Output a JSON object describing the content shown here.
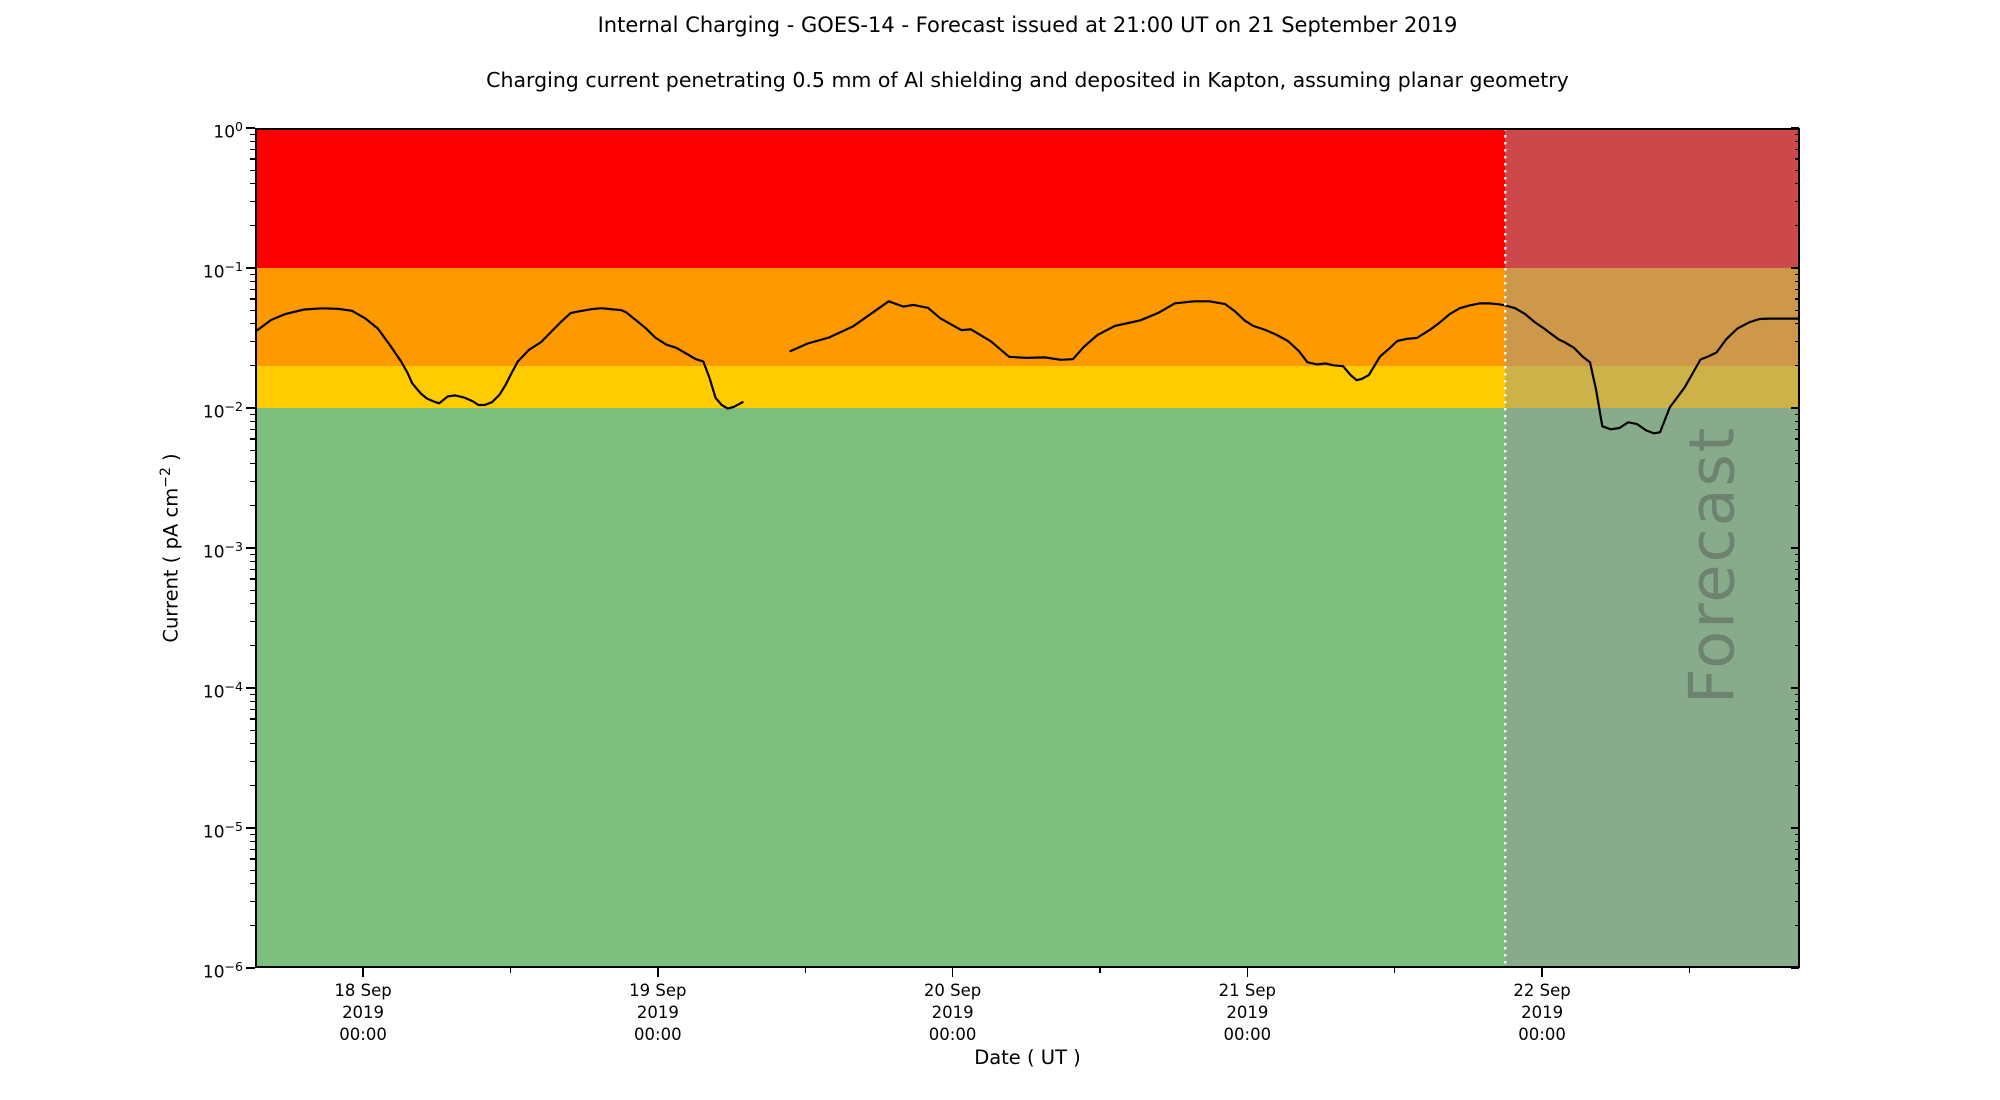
{
  "figure": {
    "title": "Internal Charging - GOES-14 - Forecast issued at 21:00 UT on 21 September 2019",
    "subtitle": "Charging current penetrating 0.5 mm of Al shielding and deposited in Kapton, assuming planar geometry",
    "watermark": "Forecast"
  },
  "axes": {
    "x_label": "Date ( UT )",
    "y_label_prefix": "Current ( pA cm",
    "y_label_sup": "−2",
    "y_label_suffix": " )",
    "x_ticks": [
      {
        "hours": 0,
        "line1": "18 Sep",
        "line2": "2019",
        "line3": "00:00"
      },
      {
        "hours": 24,
        "line1": "19 Sep",
        "line2": "2019",
        "line3": "00:00"
      },
      {
        "hours": 48,
        "line1": "20 Sep",
        "line2": "2019",
        "line3": "00:00"
      },
      {
        "hours": 72,
        "line1": "21 Sep",
        "line2": "2019",
        "line3": "00:00"
      },
      {
        "hours": 96,
        "line1": "22 Sep",
        "line2": "2019",
        "line3": "00:00"
      }
    ],
    "x_minor_tick_hours": [
      12,
      36,
      60,
      84,
      108
    ],
    "y_ticks": [
      {
        "log": 0,
        "exp": "0"
      },
      {
        "log": -1,
        "exp": "−1"
      },
      {
        "log": -2,
        "exp": "−2"
      },
      {
        "log": -3,
        "exp": "−3"
      },
      {
        "log": -4,
        "exp": "−4"
      },
      {
        "log": -5,
        "exp": "−5"
      },
      {
        "log": -6,
        "exp": "−6"
      }
    ]
  },
  "chart_data": {
    "type": "line",
    "title": "Internal Charging - GOES-14 - Forecast issued at 21:00 UT on 21 September 2019",
    "xlabel": "Date ( UT )",
    "ylabel": "Current ( pA cm^-2 )",
    "x_unit": "hours since 18 Sep 2019 00:00 UT",
    "x_range_hours": [
      -8.8,
      117
    ],
    "y_scale": "log",
    "y_range": [
      1e-06,
      1
    ],
    "grid": false,
    "legend": "none",
    "bands": [
      {
        "name": "red-alert",
        "from": 0.1,
        "to": 1.0,
        "color": "#ff0000"
      },
      {
        "name": "orange-alert",
        "from": 0.02,
        "to": 0.1,
        "color": "#ff9900"
      },
      {
        "name": "yellow-alert",
        "from": 0.01,
        "to": 0.02,
        "color": "#ffcc00"
      },
      {
        "name": "green-quiet",
        "from": 1e-06,
        "to": 0.01,
        "color": "#7cbf7d"
      }
    ],
    "forecast_start_hours": 93,
    "forecast_start_label": "21 Sep 2019 21:00 UT",
    "forecast_divider_color": "#ffffff",
    "series": [
      {
        "name": "charging-current",
        "color": "#000000",
        "segments": [
          [
            [
              -8.6,
              0.036
            ],
            [
              -7.5,
              0.0425
            ],
            [
              -6.3,
              0.047
            ],
            [
              -4.8,
              0.0505
            ],
            [
              -3.3,
              0.0515
            ],
            [
              -2,
              0.051
            ],
            [
              -0.9,
              0.0495
            ],
            [
              0.2,
              0.0435
            ],
            [
              1.2,
              0.037
            ],
            [
              2.2,
              0.028
            ],
            [
              3.1,
              0.0215
            ],
            [
              3.6,
              0.018
            ],
            [
              4,
              0.015
            ],
            [
              4.7,
              0.0127
            ],
            [
              5.2,
              0.0117
            ],
            [
              5.8,
              0.0111
            ],
            [
              6.2,
              0.0108
            ],
            [
              6.9,
              0.0121
            ],
            [
              7.5,
              0.0123
            ],
            [
              8.2,
              0.0119
            ],
            [
              8.9,
              0.0112
            ],
            [
              9.4,
              0.0105
            ],
            [
              9.9,
              0.0105
            ],
            [
              10.5,
              0.011
            ],
            [
              11.1,
              0.0124
            ],
            [
              11.6,
              0.0146
            ],
            [
              12.1,
              0.0178
            ],
            [
              12.6,
              0.0215
            ],
            [
              13.5,
              0.026
            ],
            [
              14.5,
              0.0296
            ],
            [
              15.3,
              0.0349
            ],
            [
              16.1,
              0.0411
            ],
            [
              16.9,
              0.0476
            ],
            [
              17.7,
              0.0492
            ],
            [
              18.6,
              0.0508
            ],
            [
              19.4,
              0.0516
            ],
            [
              20.2,
              0.0508
            ],
            [
              21,
              0.05
            ],
            [
              21.4,
              0.0484
            ],
            [
              22.2,
              0.0425
            ],
            [
              23,
              0.0373
            ],
            [
              23.8,
              0.0318
            ],
            [
              24.7,
              0.0283
            ],
            [
              25.5,
              0.0269
            ],
            [
              26.3,
              0.0245
            ],
            [
              27.1,
              0.0223
            ],
            [
              27.7,
              0.0215
            ],
            [
              28.2,
              0.0165
            ],
            [
              28.7,
              0.0118
            ],
            [
              29.2,
              0.0105
            ],
            [
              29.7,
              0.0099
            ],
            [
              30.2,
              0.0102
            ],
            [
              30.9,
              0.011
            ]
          ],
          [
            [
              34.8,
              0.0255
            ],
            [
              36.2,
              0.0289
            ],
            [
              37.9,
              0.0318
            ],
            [
              39.9,
              0.0383
            ],
            [
              41.7,
              0.0495
            ],
            [
              42.8,
              0.0578
            ],
            [
              44,
              0.053
            ],
            [
              44.8,
              0.0545
            ],
            [
              46,
              0.052
            ],
            [
              47,
              0.0437
            ],
            [
              48.7,
              0.036
            ],
            [
              49.5,
              0.0364
            ],
            [
              51.1,
              0.03
            ],
            [
              52.6,
              0.0232
            ],
            [
              54,
              0.0228
            ],
            [
              55.5,
              0.023
            ],
            [
              56.8,
              0.0221
            ],
            [
              57.8,
              0.0223
            ],
            [
              58.7,
              0.0274
            ],
            [
              59.8,
              0.0332
            ],
            [
              61.2,
              0.0385
            ],
            [
              63.3,
              0.0423
            ],
            [
              64.8,
              0.048
            ],
            [
              66.1,
              0.056
            ],
            [
              67.7,
              0.0578
            ],
            [
              68.9,
              0.0578
            ],
            [
              70.2,
              0.0552
            ],
            [
              71,
              0.049
            ],
            [
              71.8,
              0.042
            ],
            [
              72.5,
              0.0385
            ],
            [
              73.5,
              0.036
            ],
            [
              74.4,
              0.0332
            ],
            [
              75.3,
              0.0301
            ],
            [
              76.2,
              0.0255
            ],
            [
              76.9,
              0.0212
            ],
            [
              77.7,
              0.0205
            ],
            [
              78.4,
              0.0208
            ],
            [
              79,
              0.0202
            ],
            [
              79.8,
              0.0199
            ],
            [
              80.4,
              0.0172
            ],
            [
              80.9,
              0.0158
            ],
            [
              81.3,
              0.0161
            ],
            [
              81.9,
              0.0172
            ],
            [
              82.8,
              0.0233
            ],
            [
              83.6,
              0.0268
            ],
            [
              84.2,
              0.0301
            ],
            [
              85,
              0.0312
            ],
            [
              85.8,
              0.0316
            ],
            [
              86.9,
              0.0363
            ],
            [
              87.7,
              0.0411
            ],
            [
              88.5,
              0.047
            ],
            [
              89.3,
              0.0516
            ],
            [
              90.1,
              0.0541
            ],
            [
              90.9,
              0.0559
            ],
            [
              91.7,
              0.0559
            ],
            [
              92.5,
              0.055
            ],
            [
              93,
              0.0541
            ],
            [
              93.8,
              0.0516
            ],
            [
              94.6,
              0.047
            ],
            [
              95.4,
              0.0411
            ],
            [
              96.2,
              0.0368
            ],
            [
              96.6,
              0.0345
            ],
            [
              97.4,
              0.0307
            ],
            [
              97.8,
              0.0296
            ],
            [
              98.6,
              0.0269
            ],
            [
              99.3,
              0.0233
            ],
            [
              99.9,
              0.0212
            ],
            [
              100.4,
              0.0135
            ],
            [
              100.9,
              0.0074
            ],
            [
              101.6,
              0.00705
            ],
            [
              102.3,
              0.0072
            ],
            [
              103,
              0.0079
            ],
            [
              103.7,
              0.0077
            ],
            [
              104.5,
              0.0069
            ],
            [
              105.1,
              0.0066
            ],
            [
              105.6,
              0.0067
            ],
            [
              106.4,
              0.0101
            ],
            [
              107.6,
              0.014
            ],
            [
              108.9,
              0.0222
            ],
            [
              109.5,
              0.0233
            ],
            [
              110.2,
              0.0249
            ],
            [
              111,
              0.031
            ],
            [
              111.9,
              0.037
            ],
            [
              112.9,
              0.041
            ],
            [
              113.7,
              0.0432
            ],
            [
              114.5,
              0.0435
            ],
            [
              115.8,
              0.0435
            ],
            [
              117,
              0.0435
            ]
          ]
        ]
      }
    ]
  }
}
